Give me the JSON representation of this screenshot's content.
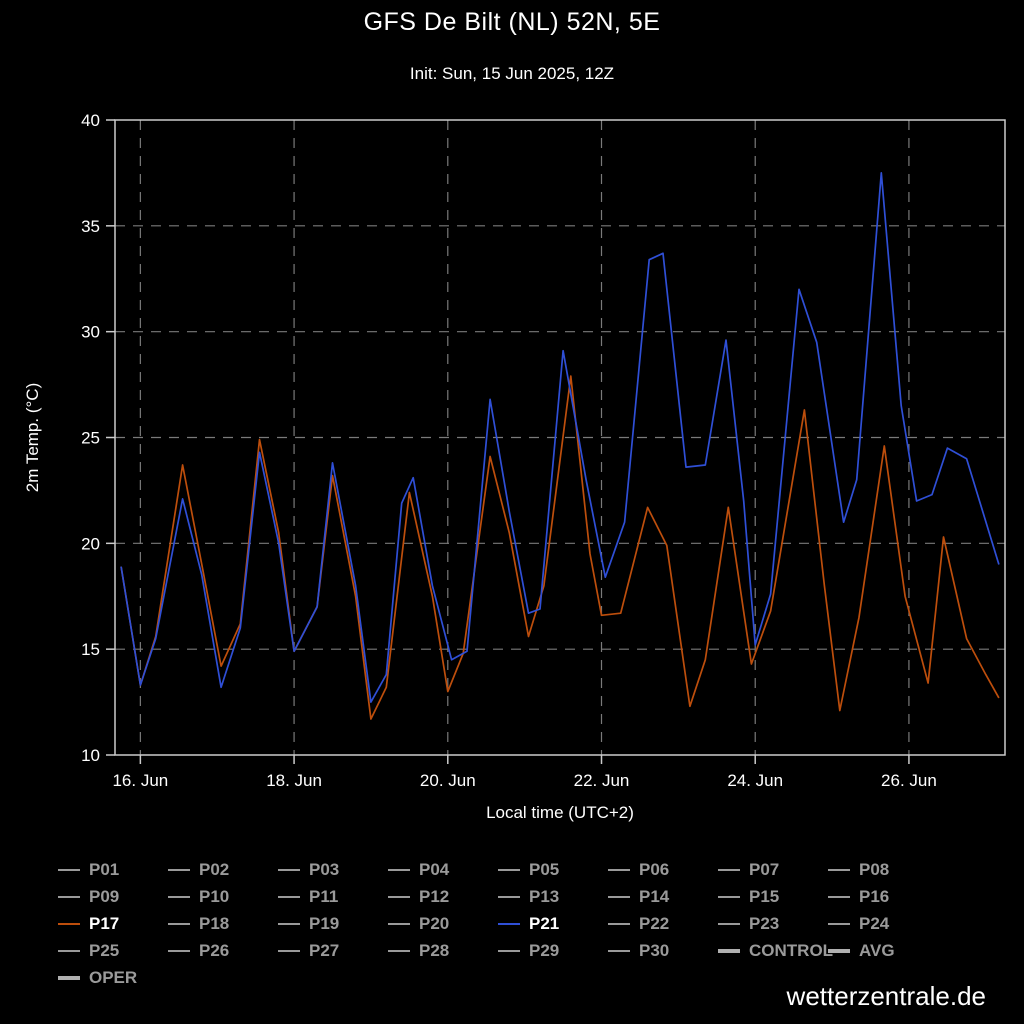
{
  "page": {
    "title": "GFS De Bilt (NL) 52N, 5E",
    "subtitle": "Init: Sun, 15 Jun 2025, 12Z",
    "watermark": "wetterzentrale.de"
  },
  "chart_data": {
    "type": "line",
    "title": "GFS De Bilt (NL) 52N, 5E",
    "subtitle": "Init: Sun, 15 Jun 2025, 12Z",
    "xlabel": "Local time (UTC+2)",
    "ylabel": "2m Temp. (°C)",
    "ylim": [
      10,
      40
    ],
    "yticks": [
      10,
      15,
      20,
      25,
      30,
      35,
      40
    ],
    "grid": true,
    "x_domain_days": [
      -0.33,
      11.25
    ],
    "xticks": [
      {
        "day": 0,
        "label": "16. Jun"
      },
      {
        "day": 2,
        "label": "18. Jun"
      },
      {
        "day": 4,
        "label": "20. Jun"
      },
      {
        "day": 6,
        "label": "22. Jun"
      },
      {
        "day": 8,
        "label": "24. Jun"
      },
      {
        "day": 10,
        "label": "26. Jun"
      }
    ],
    "series": [
      {
        "name": "P17",
        "color": "#bd4e0c",
        "points": [
          [
            -0.25,
            18.9
          ],
          [
            0.0,
            13.3
          ],
          [
            0.2,
            15.6
          ],
          [
            0.55,
            23.7
          ],
          [
            0.8,
            19.0
          ],
          [
            1.05,
            14.2
          ],
          [
            1.3,
            16.2
          ],
          [
            1.55,
            24.9
          ],
          [
            1.8,
            20.5
          ],
          [
            2.0,
            14.9
          ],
          [
            2.3,
            17.0
          ],
          [
            2.5,
            23.2
          ],
          [
            2.8,
            17.5
          ],
          [
            3.0,
            11.7
          ],
          [
            3.2,
            13.2
          ],
          [
            3.5,
            22.4
          ],
          [
            3.8,
            17.5
          ],
          [
            4.0,
            13.0
          ],
          [
            4.2,
            14.8
          ],
          [
            4.55,
            24.1
          ],
          [
            4.8,
            20.5
          ],
          [
            5.05,
            15.6
          ],
          [
            5.25,
            18.0
          ],
          [
            5.6,
            27.9
          ],
          [
            5.85,
            19.5
          ],
          [
            6.0,
            16.6
          ],
          [
            6.25,
            16.7
          ],
          [
            6.6,
            21.7
          ],
          [
            6.85,
            19.9
          ],
          [
            7.15,
            12.3
          ],
          [
            7.35,
            14.5
          ],
          [
            7.65,
            21.7
          ],
          [
            7.95,
            14.3
          ],
          [
            8.2,
            16.8
          ],
          [
            8.64,
            26.3
          ],
          [
            8.9,
            18.0
          ],
          [
            9.1,
            12.1
          ],
          [
            9.35,
            16.5
          ],
          [
            9.68,
            24.6
          ],
          [
            9.95,
            17.5
          ],
          [
            10.25,
            13.4
          ],
          [
            10.45,
            20.3
          ],
          [
            10.75,
            15.5
          ],
          [
            11.0,
            13.8
          ],
          [
            11.17,
            12.7
          ]
        ]
      },
      {
        "name": "P21",
        "color": "#2f4fd6",
        "points": [
          [
            -0.25,
            18.9
          ],
          [
            0.0,
            13.3
          ],
          [
            0.2,
            15.5
          ],
          [
            0.55,
            22.1
          ],
          [
            0.8,
            18.5
          ],
          [
            1.05,
            13.2
          ],
          [
            1.3,
            16.0
          ],
          [
            1.55,
            24.3
          ],
          [
            1.8,
            20.0
          ],
          [
            2.0,
            14.9
          ],
          [
            2.3,
            17.0
          ],
          [
            2.5,
            23.8
          ],
          [
            2.8,
            18.0
          ],
          [
            3.0,
            12.5
          ],
          [
            3.2,
            13.8
          ],
          [
            3.4,
            21.9
          ],
          [
            3.55,
            23.1
          ],
          [
            3.8,
            18.0
          ],
          [
            4.05,
            14.5
          ],
          [
            4.25,
            14.9
          ],
          [
            4.55,
            26.8
          ],
          [
            4.8,
            21.5
          ],
          [
            5.05,
            16.7
          ],
          [
            5.2,
            16.9
          ],
          [
            5.5,
            29.1
          ],
          [
            5.8,
            23.0
          ],
          [
            6.05,
            18.4
          ],
          [
            6.3,
            21.0
          ],
          [
            6.62,
            33.4
          ],
          [
            6.8,
            33.7
          ],
          [
            7.1,
            23.6
          ],
          [
            7.35,
            23.7
          ],
          [
            7.62,
            29.6
          ],
          [
            7.85,
            22.0
          ],
          [
            8.0,
            15.2
          ],
          [
            8.2,
            17.6
          ],
          [
            8.57,
            32.0
          ],
          [
            8.8,
            29.5
          ],
          [
            9.15,
            21.0
          ],
          [
            9.32,
            23.0
          ],
          [
            9.64,
            37.5
          ],
          [
            9.9,
            26.5
          ],
          [
            10.1,
            22.0
          ],
          [
            10.3,
            22.3
          ],
          [
            10.5,
            24.5
          ],
          [
            10.75,
            24.0
          ],
          [
            11.17,
            19.0
          ]
        ]
      }
    ],
    "legend_position": "bottom"
  },
  "legend": {
    "items": [
      {
        "label": "P01",
        "color": "#9a9a9a",
        "highlight": false,
        "thick": false
      },
      {
        "label": "P02",
        "color": "#9a9a9a",
        "highlight": false,
        "thick": false
      },
      {
        "label": "P03",
        "color": "#9a9a9a",
        "highlight": false,
        "thick": false
      },
      {
        "label": "P04",
        "color": "#9a9a9a",
        "highlight": false,
        "thick": false
      },
      {
        "label": "P05",
        "color": "#9a9a9a",
        "highlight": false,
        "thick": false
      },
      {
        "label": "P06",
        "color": "#9a9a9a",
        "highlight": false,
        "thick": false
      },
      {
        "label": "P07",
        "color": "#9a9a9a",
        "highlight": false,
        "thick": false
      },
      {
        "label": "P08",
        "color": "#9a9a9a",
        "highlight": false,
        "thick": false
      },
      {
        "label": "P09",
        "color": "#9a9a9a",
        "highlight": false,
        "thick": false
      },
      {
        "label": "P10",
        "color": "#9a9a9a",
        "highlight": false,
        "thick": false
      },
      {
        "label": "P11",
        "color": "#9a9a9a",
        "highlight": false,
        "thick": false
      },
      {
        "label": "P12",
        "color": "#9a9a9a",
        "highlight": false,
        "thick": false
      },
      {
        "label": "P13",
        "color": "#9a9a9a",
        "highlight": false,
        "thick": false
      },
      {
        "label": "P14",
        "color": "#9a9a9a",
        "highlight": false,
        "thick": false
      },
      {
        "label": "P15",
        "color": "#9a9a9a",
        "highlight": false,
        "thick": false
      },
      {
        "label": "P16",
        "color": "#9a9a9a",
        "highlight": false,
        "thick": false
      },
      {
        "label": "P17",
        "color": "#bd4e0c",
        "highlight": true,
        "thick": false
      },
      {
        "label": "P18",
        "color": "#9a9a9a",
        "highlight": false,
        "thick": false
      },
      {
        "label": "P19",
        "color": "#9a9a9a",
        "highlight": false,
        "thick": false
      },
      {
        "label": "P20",
        "color": "#9a9a9a",
        "highlight": false,
        "thick": false
      },
      {
        "label": "P21",
        "color": "#2f4fd6",
        "highlight": true,
        "thick": false
      },
      {
        "label": "P22",
        "color": "#9a9a9a",
        "highlight": false,
        "thick": false
      },
      {
        "label": "P23",
        "color": "#9a9a9a",
        "highlight": false,
        "thick": false
      },
      {
        "label": "P24",
        "color": "#9a9a9a",
        "highlight": false,
        "thick": false
      },
      {
        "label": "P25",
        "color": "#9a9a9a",
        "highlight": false,
        "thick": false
      },
      {
        "label": "P26",
        "color": "#9a9a9a",
        "highlight": false,
        "thick": false
      },
      {
        "label": "P27",
        "color": "#9a9a9a",
        "highlight": false,
        "thick": false
      },
      {
        "label": "P28",
        "color": "#9a9a9a",
        "highlight": false,
        "thick": false
      },
      {
        "label": "P29",
        "color": "#9a9a9a",
        "highlight": false,
        "thick": false
      },
      {
        "label": "P30",
        "color": "#9a9a9a",
        "highlight": false,
        "thick": false
      },
      {
        "label": "CONTROL",
        "color": "#b0b0b0",
        "highlight": false,
        "thick": true
      },
      {
        "label": "AVG",
        "color": "#b0b0b0",
        "highlight": false,
        "thick": true
      },
      {
        "label": "OPER",
        "color": "#b0b0b0",
        "highlight": false,
        "thick": true
      }
    ]
  }
}
